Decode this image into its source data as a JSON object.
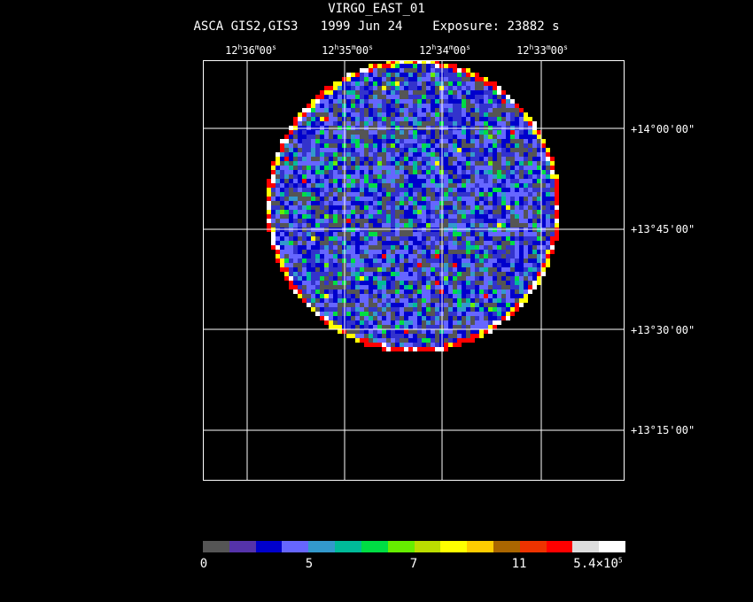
{
  "header": {
    "title": "VIRGO_EAST_01",
    "subtitle": "ASCA GIS2,GIS3   1999 Jun 24    Exposure: 23882 s"
  },
  "ra_labels": [
    {
      "h": "12",
      "m": "36",
      "s": "00"
    },
    {
      "h": "12",
      "m": "35",
      "s": "00"
    },
    {
      "h": "12",
      "m": "34",
      "s": "00"
    },
    {
      "h": "12",
      "m": "33",
      "s": "00"
    }
  ],
  "dec_labels": [
    "+14°00'00\"",
    "+13°45'00\"",
    "+13°30'00\"",
    "+13°15'00\""
  ],
  "colorbar": {
    "colors": [
      "#555555",
      "#5533aa",
      "#0000cc",
      "#6666ff",
      "#3399cc",
      "#00bb99",
      "#00dd44",
      "#66ee00",
      "#bbdd00",
      "#ffff00",
      "#ffcc00",
      "#aa6600",
      "#ee3300",
      "#ff0000",
      "#dddddd",
      "#ffffff"
    ],
    "labels": [
      "0",
      "5",
      "7",
      "11"
    ],
    "max_label_base": "5.4×10",
    "max_label_exp": "5"
  },
  "image": {
    "background_level_colors": [
      "#555555",
      "#0000cc",
      "#3333cc",
      "#6666ff"
    ],
    "hot_colors": [
      "#3399cc",
      "#00bb99",
      "#00dd44",
      "#66ee00",
      "#ffff00",
      "#ff0000"
    ]
  }
}
